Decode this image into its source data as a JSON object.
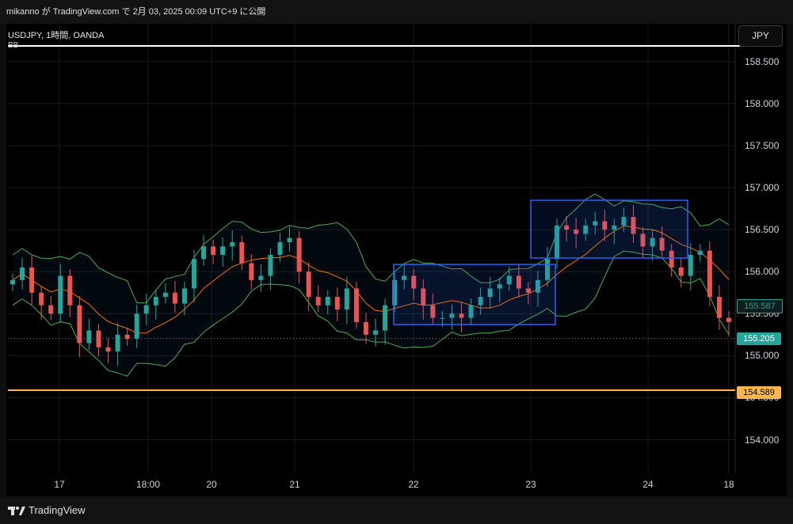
{
  "header": {
    "publish_line": "mikanno が TradingView.com で 2月 03, 2025 00:09 UTC+9 に公開"
  },
  "chart": {
    "symbol_line": "USDJPY, 1時間, OANDA",
    "indicator": "BB",
    "currency_button": "JPY",
    "current_price": "155.205",
    "secondary_price": "155.587",
    "horizontal_line_price": "154.589",
    "colors": {
      "up": "#26a69a",
      "down": "#ef5350",
      "basis": "#ff6d00",
      "bands": "#4caf50",
      "rect": "#2962ff",
      "hline": "#ffb74d",
      "current_badge": "#26a69a"
    }
  },
  "footer": {
    "brand": "TradingView"
  },
  "chart_data": {
    "type": "line",
    "title": "USDJPY, 1時間, OANDA",
    "y_tick_labels": [
      "158.500",
      "158.000",
      "157.500",
      "157.000",
      "156.500",
      "156.000",
      "155.500",
      "155.000",
      "154.500",
      "154.000"
    ],
    "y_ticks": [
      158.5,
      158.0,
      157.5,
      157.0,
      156.5,
      156.0,
      155.5,
      155.0,
      154.5,
      154.0
    ],
    "x_tick_labels": [
      "17",
      "18:00",
      "20",
      "21",
      "22",
      "23",
      "24",
      "18"
    ],
    "ylim": [
      153.6,
      158.95
    ],
    "series": [
      {
        "values": [
          155.9,
          156.05,
          155.75,
          155.6,
          155.5,
          155.95,
          155.6,
          155.15,
          155.3,
          155.1,
          155.05,
          155.25,
          155.2,
          155.5,
          155.6,
          155.7,
          155.75,
          155.62,
          155.8,
          156.15,
          156.3,
          156.2,
          156.3,
          156.35,
          156.1,
          155.9,
          155.95,
          156.2,
          156.35,
          156.4,
          156.0,
          155.7,
          155.6,
          155.7,
          155.55,
          155.8,
          155.4,
          155.25,
          155.3,
          155.6,
          155.9,
          155.95,
          155.8,
          155.6,
          155.45,
          155.45,
          155.5,
          155.45,
          155.6,
          155.7,
          155.8,
          155.85,
          155.95,
          155.8,
          155.75,
          155.9,
          156.15,
          156.55,
          156.5,
          156.45,
          156.55,
          156.6,
          156.5,
          156.55,
          156.65,
          156.45,
          156.3,
          156.4,
          156.25,
          156.05,
          155.95,
          156.2,
          156.25,
          155.7,
          155.45,
          155.4
        ]
      }
    ]
  }
}
